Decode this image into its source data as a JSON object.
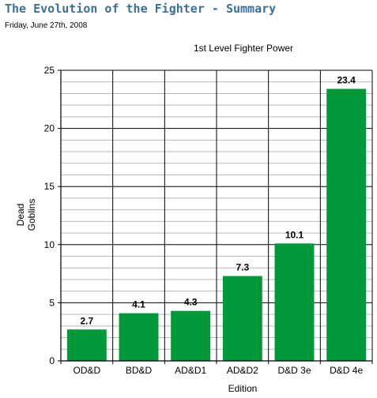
{
  "page": {
    "title": "The Evolution of the Fighter - Summary",
    "date": "Friday, June 27th, 2008"
  },
  "chart_data": {
    "type": "bar",
    "title": "1st Level Fighter Power",
    "xlabel": "Edition",
    "ylabel_lines": [
      "Dead",
      "Goblins"
    ],
    "categories": [
      "OD&D",
      "BD&D",
      "AD&D1",
      "AD&D2",
      "D&D 3e",
      "D&D 4e"
    ],
    "values": [
      2.7,
      4.1,
      4.3,
      7.3,
      10.1,
      23.4
    ],
    "data_labels": [
      "2.7",
      "4.1",
      "4.3",
      "7.3",
      "10.1",
      "23.4"
    ],
    "ylim": [
      0,
      25
    ],
    "y_ticks": [
      0,
      5,
      10,
      15,
      20,
      25
    ],
    "minor_step": 1,
    "grid": true,
    "legend": "none",
    "bar_color": "#00993a",
    "major_grid_color": "#000000",
    "minor_grid_color": "#b8b8b8"
  }
}
